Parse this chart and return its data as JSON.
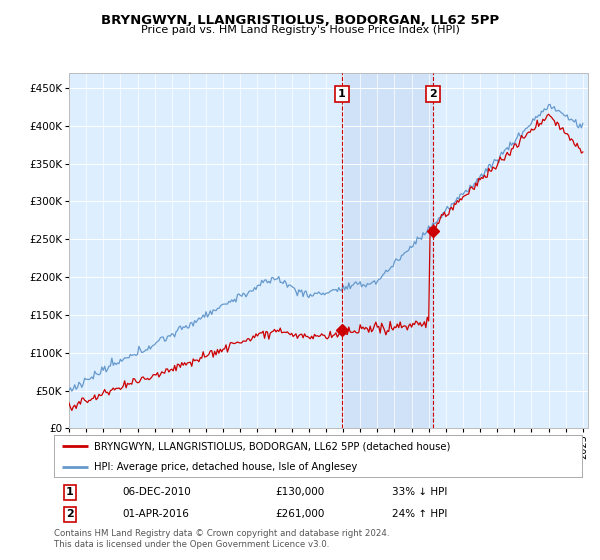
{
  "title": "BRYNGWYN, LLANGRISTIOLUS, BODORGAN, LL62 5PP",
  "subtitle": "Price paid vs. HM Land Registry's House Price Index (HPI)",
  "legend_label_red": "BRYNGWYN, LLANGRISTIOLUS, BODORGAN, LL62 5PP (detached house)",
  "legend_label_blue": "HPI: Average price, detached house, Isle of Anglesey",
  "marker1_date": "06-DEC-2010",
  "marker1_price": 130000,
  "marker1_hpi": "33% ↓ HPI",
  "marker2_date": "01-APR-2016",
  "marker2_price": 261000,
  "marker2_hpi": "24% ↑ HPI",
  "footer": "Contains HM Land Registry data © Crown copyright and database right 2024.\nThis data is licensed under the Open Government Licence v3.0.",
  "ylim_min": 0,
  "ylim_max": 470000,
  "background_color": "#ffffff",
  "plot_bg_color": "#ddeeff",
  "red_color": "#cc0000",
  "blue_color": "#6699cc",
  "marker_line_color": "#cc0000",
  "shade_color": "#cce0f5"
}
